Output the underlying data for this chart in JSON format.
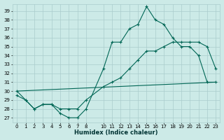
{
  "xlabel": "Humidex (Indice chaleur)",
  "background_color": "#cceae7",
  "grid_color": "#aacccc",
  "line_color": "#006655",
  "xlim": [
    -0.5,
    23.5
  ],
  "ylim": [
    26.5,
    39.8
  ],
  "xticks": [
    0,
    1,
    2,
    3,
    4,
    5,
    6,
    7,
    8,
    10,
    11,
    12,
    13,
    14,
    15,
    16,
    17,
    18,
    19,
    20,
    21,
    22,
    23
  ],
  "yticks": [
    27,
    28,
    29,
    30,
    31,
    32,
    33,
    34,
    35,
    36,
    37,
    38,
    39
  ],
  "series1_x": [
    0,
    1,
    2,
    3,
    4,
    5,
    6,
    7,
    8,
    10,
    11,
    12,
    13,
    14,
    15,
    16,
    17,
    18,
    19,
    20,
    21,
    22,
    23
  ],
  "series1_y": [
    30.0,
    29.0,
    28.0,
    28.5,
    28.5,
    27.5,
    27.0,
    27.0,
    28.0,
    32.5,
    35.5,
    35.5,
    37.0,
    37.5,
    39.5,
    38.0,
    37.5,
    36.0,
    35.0,
    35.0,
    34.0,
    31.0,
    31.0
  ],
  "series2_x": [
    0,
    23
  ],
  "series2_y": [
    30.0,
    31.0
  ],
  "series3_x": [
    0,
    1,
    2,
    3,
    4,
    5,
    6,
    7,
    8,
    10,
    11,
    12,
    13,
    14,
    15,
    16,
    17,
    18,
    19,
    20,
    21,
    22,
    23
  ],
  "series3_y": [
    29.5,
    29.0,
    28.0,
    28.5,
    28.5,
    28.0,
    28.0,
    28.0,
    29.0,
    30.5,
    31.0,
    31.5,
    32.5,
    33.5,
    34.5,
    34.5,
    35.0,
    35.5,
    35.5,
    35.5,
    35.5,
    35.0,
    32.5
  ],
  "xlabel_fontsize": 6,
  "tick_fontsize": 5
}
